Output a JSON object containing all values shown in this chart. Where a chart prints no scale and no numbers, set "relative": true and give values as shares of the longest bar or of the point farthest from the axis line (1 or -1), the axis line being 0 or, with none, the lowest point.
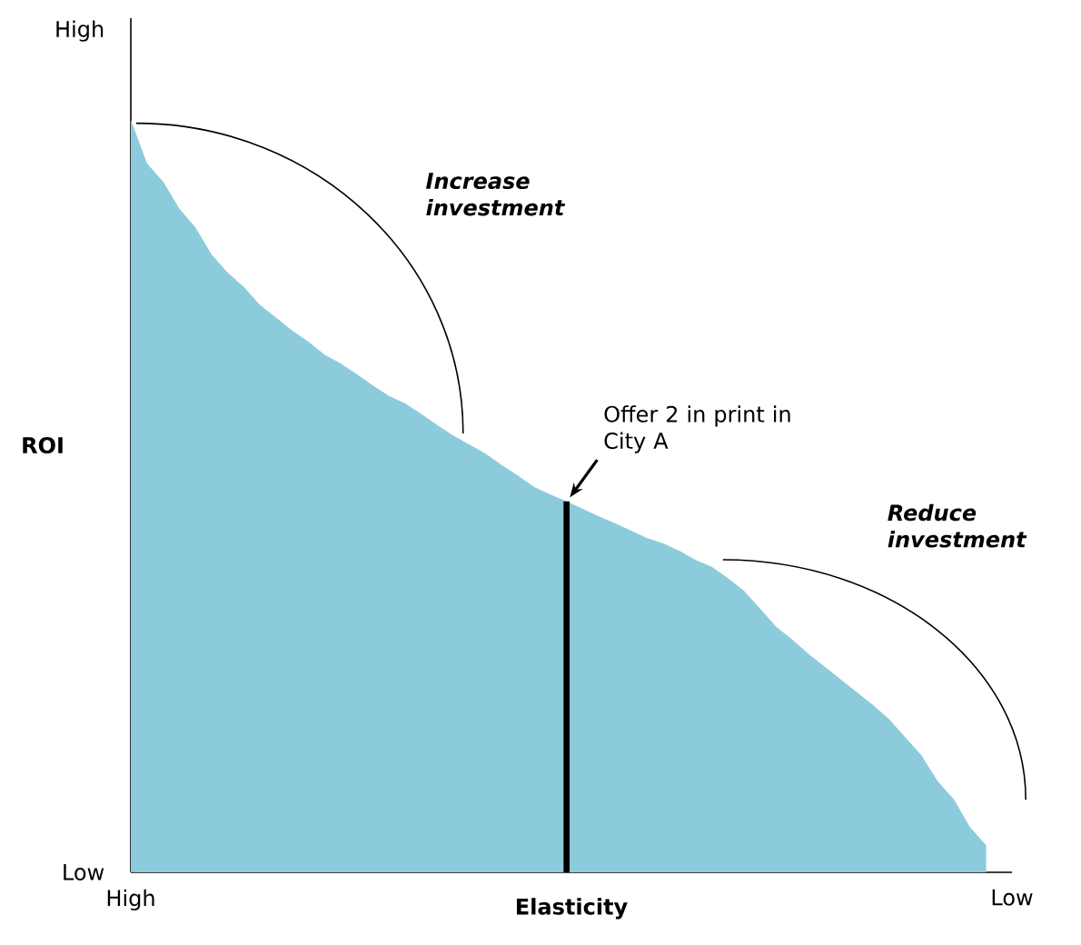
{
  "chart_data": {
    "type": "area",
    "relative": true,
    "color": "#8ccbdc",
    "xlabel": "Elasticity",
    "ylabel": "ROI",
    "categories": [
      null,
      null,
      null,
      null,
      null,
      null,
      null,
      null,
      null,
      null,
      null,
      null,
      null,
      null,
      null,
      null,
      null,
      null,
      null,
      null,
      null,
      null,
      null,
      null,
      null,
      null,
      null,
      null,
      null,
      null,
      null,
      null,
      null,
      null,
      null,
      null,
      null,
      null,
      null,
      null,
      null,
      null,
      null,
      null,
      null,
      null,
      null,
      null,
      null,
      null,
      null,
      null,
      null,
      null
    ],
    "values": [
      1,
      0.942,
      0.918,
      0.882,
      0.857,
      0.821,
      0.797,
      0.778,
      0.754,
      0.737,
      0.72,
      0.705,
      0.688,
      0.676,
      0.662,
      0.647,
      0.633,
      0.623,
      0.609,
      0.594,
      0.58,
      0.568,
      0.556,
      0.541,
      0.527,
      0.512,
      0.502,
      0.493,
      0.483,
      0.473,
      0.464,
      0.454,
      0.444,
      0.437,
      0.427,
      0.415,
      0.406,
      0.391,
      0.374,
      0.35,
      0.326,
      0.309,
      0.29,
      0.273,
      0.256,
      0.239,
      0.222,
      0.203,
      0.179,
      0.155,
      0.121,
      0.097,
      0.06,
      0.036
    ],
    "annotations": [
      "Increase investment",
      "Reduce investment",
      "High",
      "Low",
      "High",
      "Low",
      "Offer 2 in print in City A"
    ]
  }
}
